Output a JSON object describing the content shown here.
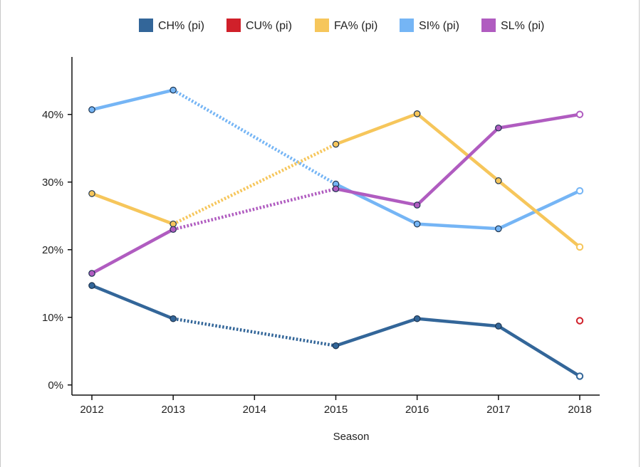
{
  "chart_data": {
    "type": "line",
    "title": "",
    "xlabel": "Season",
    "ylabel": "",
    "x": [
      2012,
      2013,
      2014,
      2015,
      2016,
      2017,
      2018
    ],
    "x_tick_labels": [
      "2012",
      "2013",
      "2014",
      "2015",
      "2016",
      "2017",
      "2018"
    ],
    "y_ticks": [
      0,
      10,
      20,
      30,
      40
    ],
    "y_tick_labels": [
      "0%",
      "10%",
      "20%",
      "30%",
      "40%"
    ],
    "ylim": [
      -1.5,
      48.5
    ],
    "grid": false,
    "legend_position": "top",
    "missing_segment_style": "dotted",
    "series": [
      {
        "name": "CH% (pi)",
        "color": "#336699",
        "values": [
          14.7,
          9.8,
          null,
          5.8,
          9.8,
          8.7,
          1.3
        ]
      },
      {
        "name": "CU% (pi)",
        "color": "#d0202a",
        "values": [
          null,
          null,
          null,
          null,
          null,
          null,
          9.5
        ]
      },
      {
        "name": "FA% (pi)",
        "color": "#f6c65b",
        "values": [
          28.3,
          23.8,
          null,
          35.6,
          40.1,
          30.2,
          20.4
        ]
      },
      {
        "name": "SI% (pi)",
        "color": "#75b5f5",
        "values": [
          40.7,
          43.6,
          null,
          29.7,
          23.8,
          23.1,
          28.7
        ]
      },
      {
        "name": "SL% (pi)",
        "color": "#b05cc0",
        "values": [
          16.5,
          23.0,
          null,
          29.0,
          26.6,
          38.0,
          40.0
        ]
      }
    ]
  }
}
